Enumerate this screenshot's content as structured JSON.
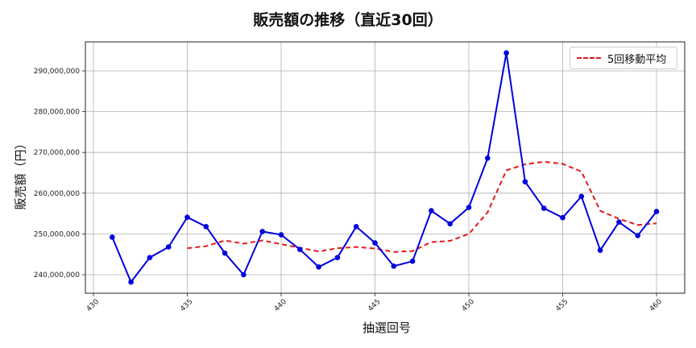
{
  "chart_data": {
    "type": "line",
    "title": "販売額の推移（直近30回）",
    "xlabel": "抽選回号",
    "ylabel": "販売額（円）",
    "x": [
      431,
      432,
      433,
      434,
      435,
      436,
      437,
      438,
      439,
      440,
      441,
      442,
      443,
      444,
      445,
      446,
      447,
      448,
      449,
      450,
      451,
      452,
      453,
      454,
      455,
      456,
      457,
      458,
      459,
      460
    ],
    "series": [
      {
        "name": "販売額",
        "color": "#0000dd",
        "style": "solid-marker",
        "values": [
          249200000,
          238200000,
          244200000,
          246800000,
          254100000,
          251800000,
          245300000,
          240000000,
          250600000,
          249800000,
          246200000,
          241900000,
          244200000,
          251800000,
          247800000,
          242100000,
          243300000,
          255700000,
          252500000,
          256500000,
          268600000,
          294400000,
          262800000,
          256300000,
          254000000,
          259200000,
          246000000,
          252900000,
          249600000,
          255500000
        ]
      },
      {
        "name": "5回移動平均",
        "color": "#e31a1c",
        "style": "dashed",
        "values": [
          null,
          null,
          null,
          null,
          246500000,
          247000000,
          248400000,
          247600000,
          248400000,
          247500000,
          246600000,
          245700000,
          246500000,
          246800000,
          246400000,
          245600000,
          245800000,
          248000000,
          248300000,
          250000000,
          255300000,
          265600000,
          267100000,
          267700000,
          267200000,
          265300000,
          255700000,
          253700000,
          252200000,
          252600000
        ]
      }
    ],
    "xticks": [
      "430",
      "435",
      "440",
      "445",
      "450",
      "455",
      "460"
    ],
    "yticks": [
      "240,000,000",
      "250,000,000",
      "260,000,000",
      "270,000,000",
      "280,000,000",
      "290,000,000"
    ],
    "xlim": [
      429.6,
      461.5
    ],
    "ylim": [
      235500000,
      297000000
    ],
    "grid": true,
    "legend_position": "upper right",
    "legend": [
      "5回移動平均"
    ]
  }
}
